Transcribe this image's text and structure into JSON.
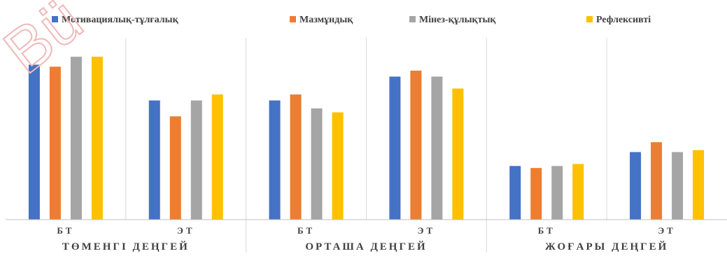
{
  "chart_data": {
    "type": "bar",
    "title": "",
    "xlabel": "",
    "ylabel": "",
    "ylim": [
      0,
      100
    ],
    "grid": false,
    "legend_position": "top",
    "categories": [
      "БТ",
      "ЭТ",
      "БТ",
      "ЭТ",
      "БТ",
      "ЭТ"
    ],
    "groups": [
      {
        "label": "ТӨМЕНГІ ДЕҢГЕЙ",
        "categories": [
          "БТ",
          "ЭТ"
        ]
      },
      {
        "label": "ОРТАША ДЕҢГЕЙ",
        "categories": [
          "БТ",
          "ЭТ"
        ]
      },
      {
        "label": "ЖОҒАРЫ ДЕҢГЕЙ",
        "categories": [
          "БТ",
          "ЭТ"
        ]
      }
    ],
    "series": [
      {
        "name": "Мотивациялық-тұлғалық",
        "color": "#4472c4",
        "values": [
          78,
          60,
          60,
          72,
          27,
          34
        ]
      },
      {
        "name": "Мазмұндық",
        "color": "#ed7d31",
        "values": [
          77,
          52,
          63,
          75,
          26,
          39
        ]
      },
      {
        "name": "Мінез-құлықтық",
        "color": "#a5a5a5",
        "values": [
          82,
          60,
          56,
          72,
          27,
          34
        ]
      },
      {
        "name": "Рефлексивті",
        "color": "#ffc000",
        "values": [
          82,
          63,
          54,
          66,
          28,
          35
        ]
      }
    ]
  },
  "watermark": "Bü"
}
